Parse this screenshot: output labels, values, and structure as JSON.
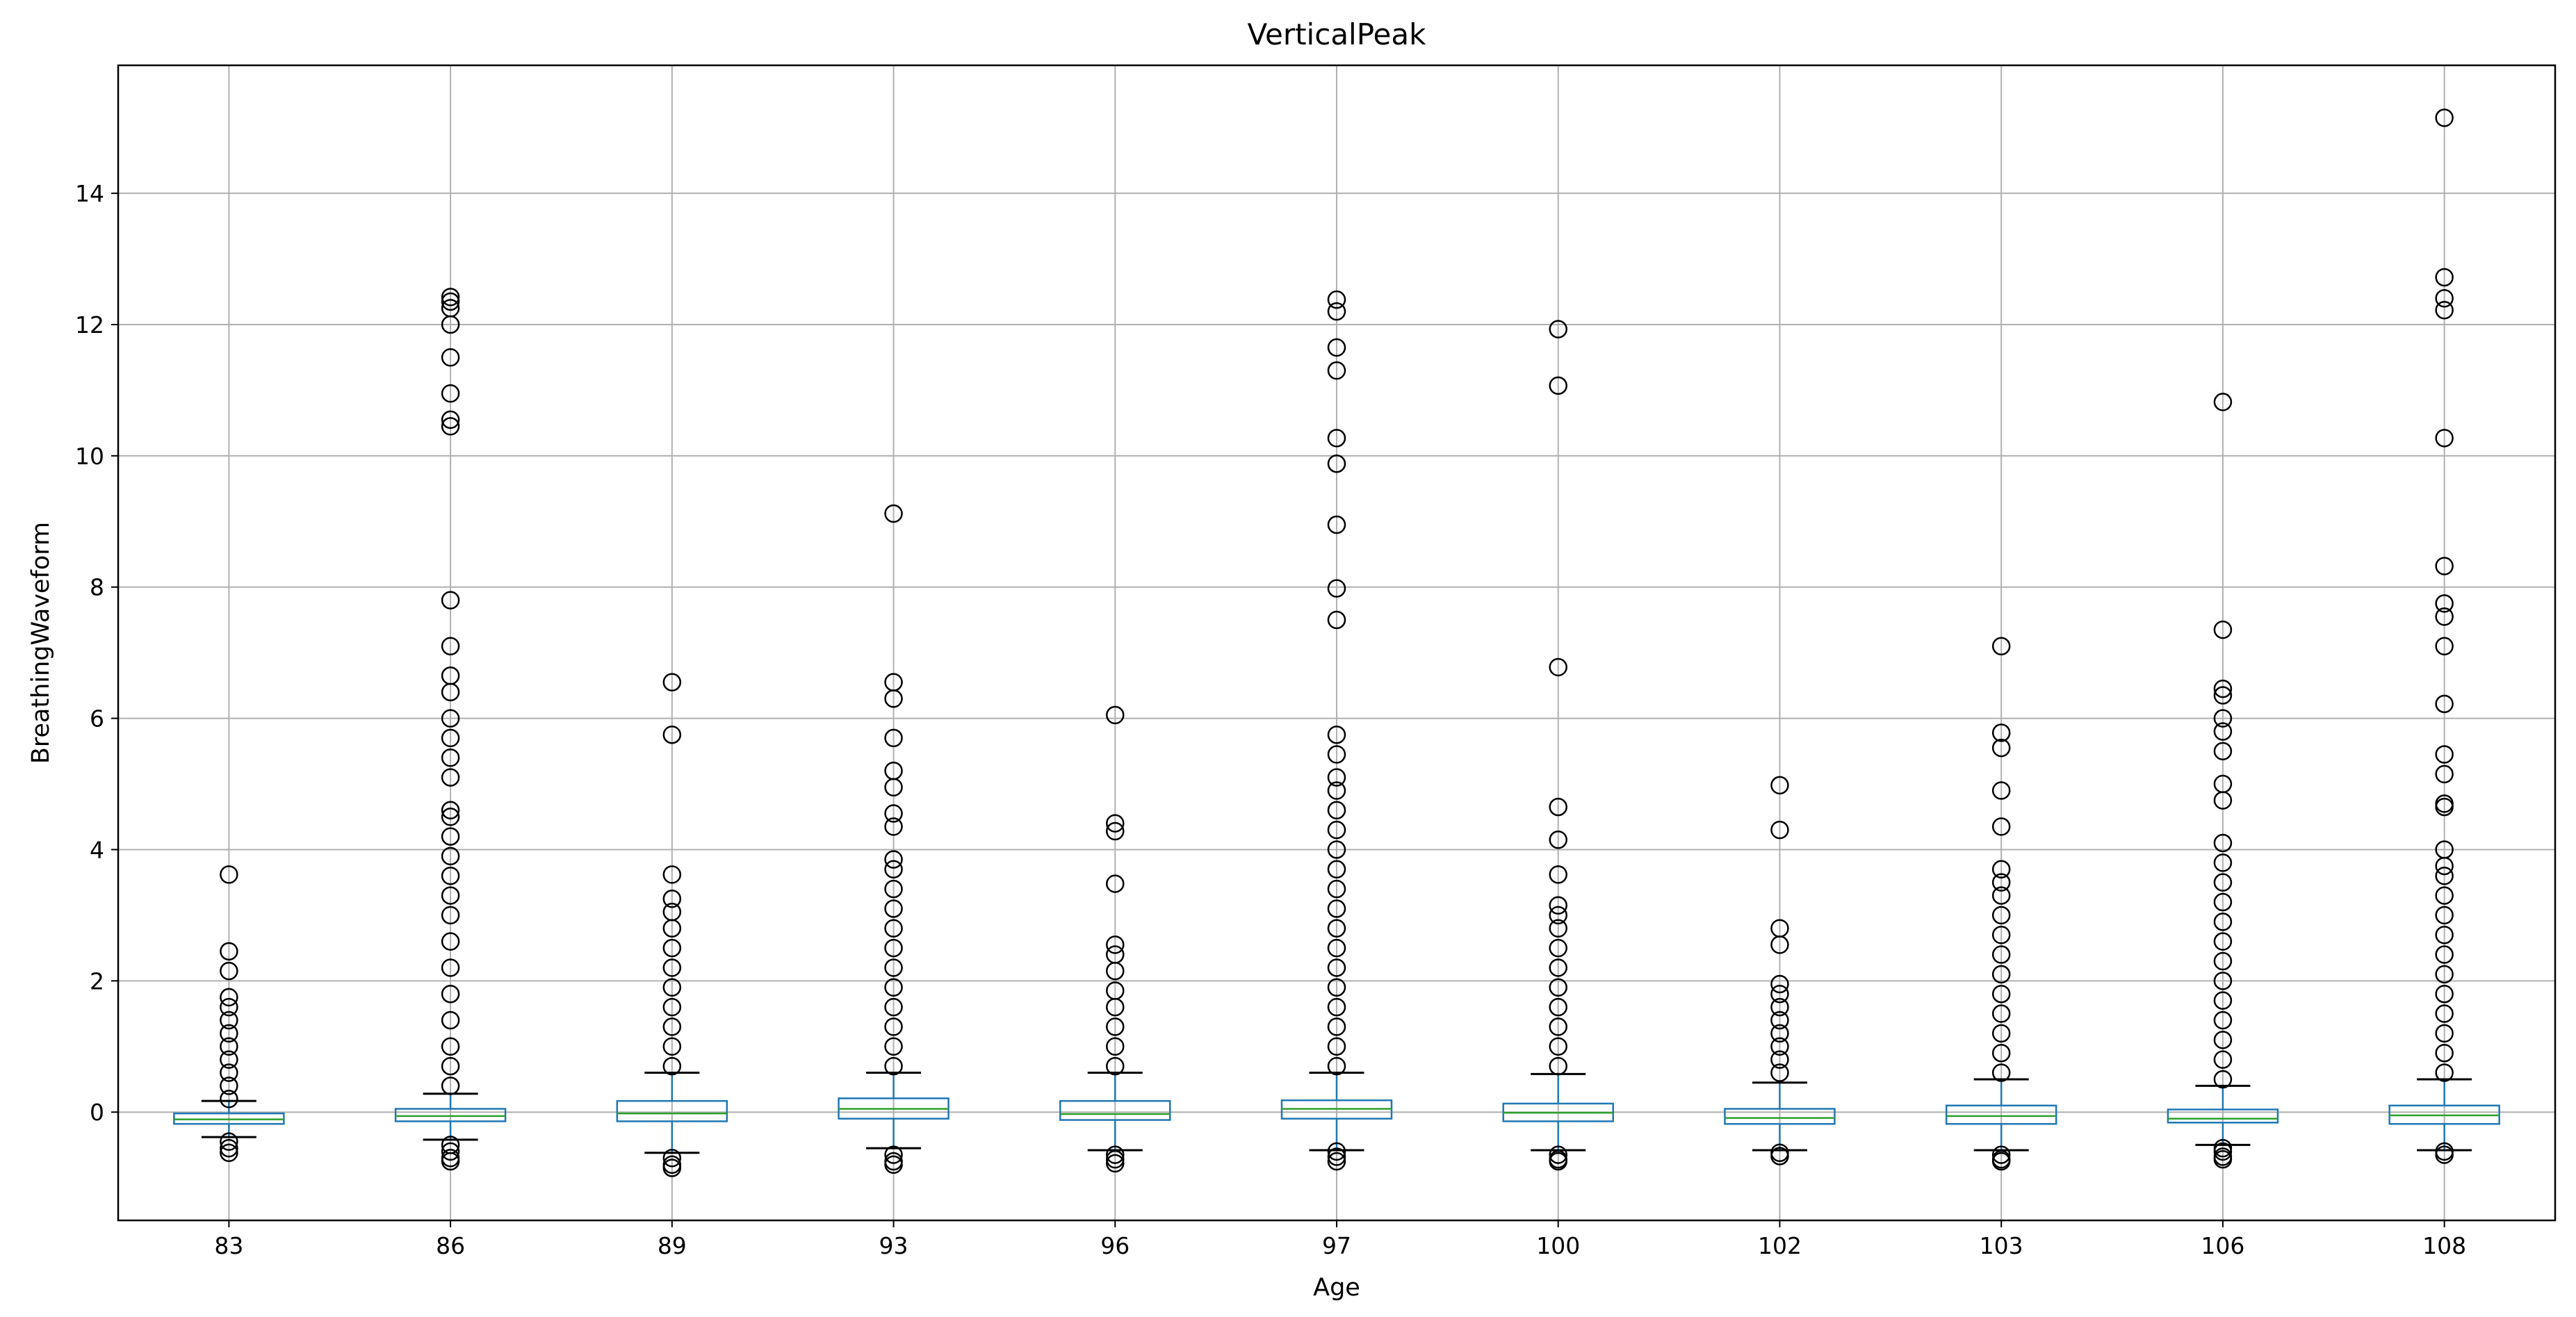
{
  "chart_data": {
    "type": "boxplot",
    "title": "VerticalPeak",
    "xlabel": "Age",
    "ylabel": "BreathingWaveform",
    "ylim": [
      -1.65,
      15.95
    ],
    "yticks": [
      0,
      2,
      4,
      6,
      8,
      10,
      12,
      14
    ],
    "grid": true,
    "colors": {
      "box": "#1f77b4",
      "median": "#2ca02c",
      "whisker": "#1f77b4",
      "cap": "#000000",
      "flier": "#000000",
      "grid": "#b0b0b0"
    },
    "categories": [
      "83",
      "86",
      "89",
      "93",
      "96",
      "97",
      "100",
      "102",
      "103",
      "106",
      "108"
    ],
    "boxes": [
      {
        "q1": -0.18,
        "median": -0.11,
        "q3": -0.02,
        "whislo": -0.38,
        "whishi": 0.17,
        "outliers_high": [
          0.2,
          0.4,
          0.6,
          0.8,
          1.0,
          1.2,
          1.4,
          1.6,
          1.75,
          2.15,
          2.45,
          3.62
        ],
        "outliers_low": [
          -0.45,
          -0.55,
          -0.62
        ]
      },
      {
        "q1": -0.14,
        "median": -0.06,
        "q3": 0.05,
        "whislo": -0.42,
        "whishi": 0.28,
        "outliers_high": [
          0.4,
          0.7,
          1.0,
          1.4,
          1.8,
          2.2,
          2.6,
          3.0,
          3.3,
          3.6,
          3.9,
          4.2,
          4.5,
          4.6,
          5.1,
          5.4,
          5.7,
          6.0,
          6.4,
          6.65,
          7.1,
          7.8,
          10.45,
          10.55,
          10.95,
          11.5,
          12.0,
          12.25,
          12.35,
          12.42
        ],
        "outliers_low": [
          -0.5,
          -0.6,
          -0.7,
          -0.75
        ]
      },
      {
        "q1": -0.14,
        "median": -0.02,
        "q3": 0.17,
        "whislo": -0.62,
        "whishi": 0.6,
        "outliers_high": [
          0.7,
          1.0,
          1.3,
          1.6,
          1.9,
          2.2,
          2.5,
          2.8,
          3.05,
          3.25,
          3.62,
          5.75,
          6.55
        ],
        "outliers_low": [
          -0.7,
          -0.8,
          -0.85
        ]
      },
      {
        "q1": -0.1,
        "median": 0.05,
        "q3": 0.21,
        "whislo": -0.55,
        "whishi": 0.6,
        "outliers_high": [
          0.7,
          1.0,
          1.3,
          1.6,
          1.9,
          2.2,
          2.5,
          2.8,
          3.1,
          3.4,
          3.7,
          3.85,
          4.35,
          4.55,
          4.95,
          5.2,
          5.7,
          6.3,
          6.55,
          9.12
        ],
        "outliers_low": [
          -0.65,
          -0.75,
          -0.8
        ]
      },
      {
        "q1": -0.12,
        "median": -0.03,
        "q3": 0.17,
        "whislo": -0.58,
        "whishi": 0.6,
        "outliers_high": [
          0.7,
          1.0,
          1.3,
          1.6,
          1.85,
          2.15,
          2.4,
          2.55,
          3.48,
          4.28,
          4.4,
          6.05
        ],
        "outliers_low": [
          -0.65,
          -0.72,
          -0.78
        ]
      },
      {
        "q1": -0.1,
        "median": 0.05,
        "q3": 0.18,
        "whislo": -0.58,
        "whishi": 0.6,
        "outliers_high": [
          0.7,
          1.0,
          1.3,
          1.6,
          1.9,
          2.2,
          2.5,
          2.8,
          3.1,
          3.4,
          3.7,
          4.0,
          4.3,
          4.6,
          4.9,
          5.1,
          5.45,
          5.75,
          7.5,
          7.98,
          8.95,
          9.88,
          10.27,
          11.3,
          11.65,
          12.2,
          12.38
        ],
        "outliers_low": [
          -0.6,
          -0.68,
          -0.75
        ]
      },
      {
        "q1": -0.14,
        "median": -0.01,
        "q3": 0.13,
        "whislo": -0.58,
        "whishi": 0.58,
        "outliers_high": [
          0.7,
          1.0,
          1.3,
          1.6,
          1.9,
          2.2,
          2.5,
          2.8,
          3.0,
          3.15,
          3.62,
          4.15,
          4.65,
          6.78,
          11.07,
          11.93
        ],
        "outliers_low": [
          -0.65,
          -0.72,
          -0.75
        ]
      },
      {
        "q1": -0.18,
        "median": -0.09,
        "q3": 0.05,
        "whislo": -0.58,
        "whishi": 0.45,
        "outliers_high": [
          0.6,
          0.8,
          1.0,
          1.2,
          1.4,
          1.6,
          1.8,
          1.95,
          2.55,
          2.8,
          4.3,
          4.98
        ],
        "outliers_low": [
          -0.62,
          -0.67
        ]
      },
      {
        "q1": -0.18,
        "median": -0.06,
        "q3": 0.1,
        "whislo": -0.58,
        "whishi": 0.5,
        "outliers_high": [
          0.6,
          0.9,
          1.2,
          1.5,
          1.8,
          2.1,
          2.4,
          2.7,
          3.0,
          3.3,
          3.5,
          3.7,
          4.35,
          4.9,
          5.55,
          5.78,
          7.1
        ],
        "outliers_low": [
          -0.65,
          -0.72,
          -0.75
        ]
      },
      {
        "q1": -0.16,
        "median": -0.1,
        "q3": 0.04,
        "whislo": -0.5,
        "whishi": 0.4,
        "outliers_high": [
          0.5,
          0.8,
          1.1,
          1.4,
          1.7,
          2.0,
          2.3,
          2.6,
          2.9,
          3.2,
          3.5,
          3.8,
          4.1,
          4.75,
          5.0,
          5.5,
          5.8,
          6.0,
          6.35,
          6.45,
          7.35,
          10.82
        ],
        "outliers_low": [
          -0.55,
          -0.6,
          -0.68,
          -0.72
        ]
      },
      {
        "q1": -0.18,
        "median": -0.05,
        "q3": 0.1,
        "whislo": -0.58,
        "whishi": 0.5,
        "outliers_high": [
          0.6,
          0.9,
          1.2,
          1.5,
          1.8,
          2.1,
          2.4,
          2.7,
          3.0,
          3.3,
          3.6,
          3.75,
          4.0,
          4.65,
          4.7,
          5.15,
          5.45,
          6.22,
          7.1,
          7.55,
          7.75,
          8.32,
          10.27,
          12.22,
          12.4,
          12.72,
          15.15
        ],
        "outliers_low": [
          -0.6,
          -0.65
        ]
      }
    ]
  }
}
